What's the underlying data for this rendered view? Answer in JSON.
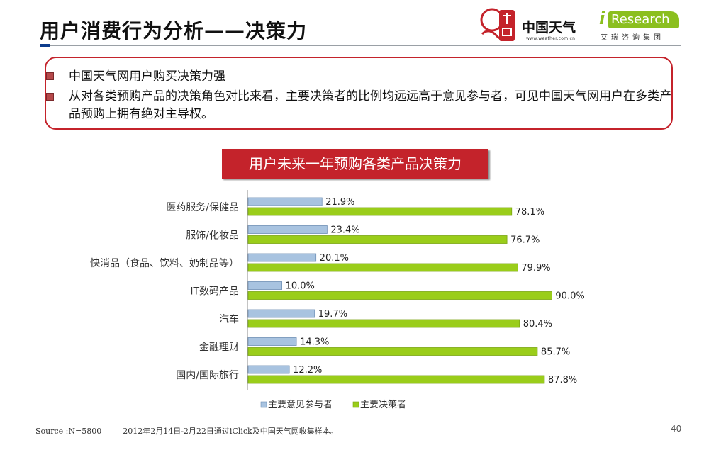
{
  "header": {
    "title": "用户消费行为分析——决策力",
    "logo_weather_text": "中国天气",
    "logo_weather_url": "www.weather.com.cn",
    "logo_ir_i": "i",
    "logo_ir_word": "Research",
    "logo_ir_sub": "艾瑞咨询集团"
  },
  "callout": {
    "bullet1": "中国天气网用户购买决策力强",
    "bullet2": "从对各类预购产品的决策角色对比来看，主要决策者的比例均远远高于意见参与者，可见中国天气网用户在多类产品预购上拥有绝对主导权。"
  },
  "banner_title": "用户未来一年预购各类产品决策力",
  "colors": {
    "accent_red": "#c4232b",
    "series_blue": "#a8c3e0",
    "series_green": "#9acd1a"
  },
  "chart_data": {
    "type": "bar",
    "orientation": "horizontal",
    "categories": [
      "医药服务/保健品",
      "服饰/化妆品",
      "快消品（食品、饮料、奶制品等）",
      "IT数码产品",
      "汽车",
      "金融理财",
      "国内/国际旅行"
    ],
    "series": [
      {
        "name": "主要意见参与者",
        "values": [
          21.9,
          23.4,
          20.1,
          10.0,
          19.7,
          14.3,
          12.2
        ],
        "labels": [
          "21.9%",
          "23.4%",
          "20.1%",
          "10.0%",
          "19.7%",
          "14.3%",
          "12.2%"
        ]
      },
      {
        "name": "主要决策者",
        "values": [
          78.1,
          76.7,
          79.9,
          90.0,
          80.4,
          85.7,
          87.8
        ],
        "labels": [
          "78.1%",
          "76.7%",
          "79.9%",
          "90.0%",
          "80.4%",
          "85.7%",
          "87.8%"
        ]
      }
    ],
    "xlim": [
      0,
      100
    ],
    "grid": false,
    "legend_position": "bottom"
  },
  "footer": {
    "source": "Source :N=5800",
    "note": "2012年2月14日-2月22日通过iClick及中国天气网收集样本。",
    "page": "40"
  }
}
